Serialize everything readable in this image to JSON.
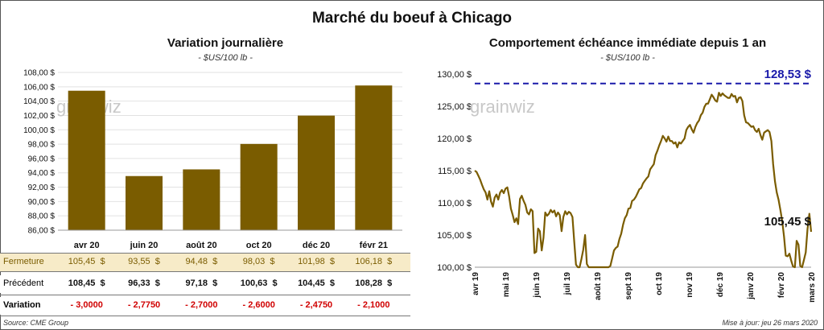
{
  "page_title": "Marché du boeuf à Chicago",
  "watermark": "grainwiz",
  "chart_data": [
    {
      "type": "bar",
      "title": "Variation journalière",
      "subtitle": "- $US/100 lb -",
      "categories": [
        "avr 20",
        "juin 20",
        "août 20",
        "oct 20",
        "déc 20",
        "févr 21"
      ],
      "values": [
        105.45,
        93.55,
        94.48,
        98.03,
        101.98,
        106.18
      ],
      "ylim": [
        86,
        108
      ],
      "yticks": [
        "108,00 $",
        "106,00 $",
        "104,00 $",
        "102,00 $",
        "100,00 $",
        "98,00 $",
        "96,00 $",
        "94,00 $",
        "92,00 $",
        "90,00 $",
        "88,00 $",
        "86,00 $"
      ],
      "bar_color": "#7a5c00",
      "table": {
        "rows": [
          {
            "label": "Fermeture",
            "values": [
              "105,45  $",
              "93,55  $",
              "94,48  $",
              "98,03  $",
              "101,98  $",
              "106,18  $"
            ],
            "bg": "#f7ebc8",
            "color": "#7a5c00"
          },
          {
            "label": "Précédent",
            "values": [
              "108,45  $",
              "96,33  $",
              "97,18  $",
              "100,63  $",
              "104,45  $",
              "108,28  $"
            ],
            "bg": "#ffffff",
            "color": "#111111"
          },
          {
            "label": "Variation",
            "values": [
              "- 3,0000",
              "- 2,7750",
              "- 2,7000",
              "- 2,6000",
              "- 2,4750",
              "- 2,1000"
            ],
            "bg": "#ffffff",
            "color": "#d00000"
          }
        ]
      }
    },
    {
      "type": "line",
      "title": "Comportement  échéance immédiate depuis 1 an",
      "subtitle": "- $US/100 lb -",
      "ylim": [
        100,
        130
      ],
      "yticks": [
        "130,00 $",
        "125,00 $",
        "120,00 $",
        "115,00 $",
        "110,00 $",
        "105,00 $",
        "100,00 $"
      ],
      "xticks": [
        "avr 19",
        "mai 19",
        "juin 19",
        "juil 19",
        "août 19",
        "sept 19",
        "oct 19",
        "nov 19",
        "déc 19",
        "janv 20",
        "févr 20",
        "mars 20"
      ],
      "high_value": 128.53,
      "high_label": "128,53 $",
      "last_label": "105,45 $",
      "line_color": "#7a5c00",
      "high_color": "#1a1aaa",
      "series": [
        {
          "values": [
            115.0,
            114.8,
            114.2,
            113.6,
            112.8,
            112.1,
            111.6,
            110.5,
            111.8,
            110.2,
            109.4,
            110.8,
            111.3,
            110.5,
            111.6,
            112.0,
            111.5,
            112.2,
            112.4,
            111.0,
            109.1,
            108.1,
            107.0,
            107.6,
            106.7,
            110.6,
            111.1,
            110.3,
            109.7,
            108.5,
            108.2,
            109.0,
            108.7,
            102.2,
            102.4,
            106.0,
            105.6,
            102.6,
            104.6,
            108.5,
            108.0,
            108.3,
            108.9,
            108.5,
            108.8,
            107.9,
            108.5,
            108.1,
            105.6,
            107.8,
            108.7,
            108.2,
            108.6,
            108.4,
            107.8,
            104.0,
            100.4,
            100.0,
            100.0,
            101.3,
            102.7,
            105.0,
            100.5,
            100.0,
            100.0,
            100.0,
            100.0,
            100.0,
            100.0,
            100.0,
            100.0,
            100.0,
            100.0,
            100.0,
            100.0,
            100.2,
            101.4,
            102.6,
            103.0,
            103.2,
            104.4,
            105.2,
            106.6,
            107.6,
            108.1,
            109.1,
            109.2,
            110.3,
            110.5,
            110.9,
            111.5,
            112.1,
            112.3,
            113.0,
            113.4,
            113.8,
            114.1,
            115.2,
            115.6,
            116.0,
            117.4,
            118.1,
            118.9,
            119.6,
            120.4,
            120.0,
            119.5,
            120.3,
            119.6,
            119.6,
            119.2,
            119.4,
            118.6,
            119.4,
            119.2,
            119.6,
            120.0,
            121.3,
            121.8,
            122.1,
            121.4,
            120.9,
            121.8,
            122.4,
            122.8,
            123.6,
            124.0,
            124.9,
            125.4,
            125.4,
            126.1,
            126.8,
            126.4,
            125.9,
            125.7,
            127.1,
            126.6,
            127.0,
            126.7,
            126.5,
            126.3,
            126.3,
            126.9,
            126.5,
            126.6,
            125.6,
            126.3,
            126.4,
            125.8,
            123.6,
            122.5,
            122.4,
            122.1,
            121.8,
            121.9,
            121.3,
            121.0,
            121.5,
            120.5,
            119.8,
            120.9,
            121.1,
            121.3,
            121.0,
            119.6,
            116.0,
            113.3,
            111.6,
            110.5,
            108.9,
            107.2,
            104.8,
            101.8,
            101.7,
            102.1,
            101.0,
            100.1,
            100.0,
            104.1,
            103.5,
            100.2,
            99.9,
            101.1,
            102.3,
            105.9,
            108.3,
            105.5
          ]
        }
      ]
    }
  ],
  "footer": {
    "source": "Source: CME Group",
    "update": "Mise à jour: jeu 26 mars 2020"
  }
}
